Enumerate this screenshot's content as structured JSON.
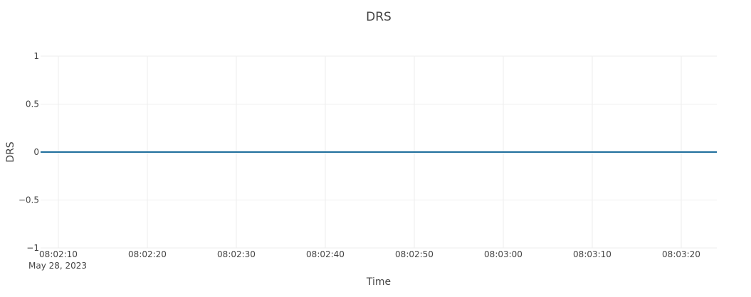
{
  "chart_data": {
    "type": "line",
    "title": "DRS",
    "xlabel": "Time",
    "ylabel": "DRS",
    "x_ticks": [
      "08:02:10",
      "08:02:20",
      "08:02:30",
      "08:02:40",
      "08:02:50",
      "08:03:00",
      "08:03:10",
      "08:03:20"
    ],
    "x_date_label": "May 28, 2023",
    "xlim": [
      "2023-05-28 08:02:08",
      "2023-05-28 08:03:24"
    ],
    "y_ticks": [
      "1",
      "0.5",
      "0",
      "−0.5",
      "−1"
    ],
    "ylim": [
      -1,
      1
    ],
    "grid": true,
    "line_color": "#1f6e9c",
    "series": [
      {
        "x": [
          "2023-05-28 08:02:08",
          "2023-05-28 08:03:24"
        ],
        "values": [
          0,
          0
        ]
      }
    ]
  }
}
